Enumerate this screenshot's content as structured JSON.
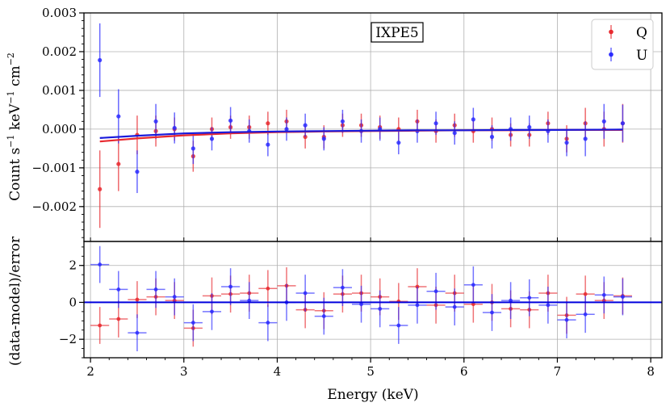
{
  "chart_data": [
    {
      "panel": "top",
      "type": "scatter",
      "ylabel_parts": [
        "Count s",
        "−1",
        " keV",
        "−1",
        " cm",
        "−2"
      ],
      "ylim": [
        -0.0029,
        0.003
      ],
      "xlim": [
        1.93,
        8.12
      ],
      "yticks": [
        {
          "v": 0.003,
          "label": "0.003"
        },
        {
          "v": 0.002,
          "label": "0.002"
        },
        {
          "v": 0.001,
          "label": "0.001"
        },
        {
          "v": 0.0,
          "label": "0.000"
        },
        {
          "v": -0.001,
          "label": "−0.001"
        },
        {
          "v": -0.002,
          "label": "−0.002"
        }
      ],
      "annotation": "IXPE5",
      "legend": {
        "placement": "top-right",
        "entries": [
          {
            "label": "Q",
            "color": "#e8292f"
          },
          {
            "label": "U",
            "color": "#2b2bff"
          }
        ]
      },
      "grid": true,
      "series": [
        {
          "name": "Q",
          "color": "#e8292f",
          "x": [
            2.1,
            2.3,
            2.5,
            2.7,
            2.9,
            3.1,
            3.3,
            3.5,
            3.7,
            3.9,
            4.1,
            4.3,
            4.5,
            4.7,
            4.9,
            5.1,
            5.3,
            5.5,
            5.7,
            5.9,
            6.1,
            6.3,
            6.5,
            6.7,
            6.9,
            7.1,
            7.3,
            7.5,
            7.7
          ],
          "y": [
            -0.00155,
            -0.0009,
            -0.00015,
            -5e-05,
            0.0,
            -0.0007,
            0.0,
            5e-05,
            5e-05,
            0.00015,
            0.0002,
            -0.0002,
            -0.0002,
            0.0001,
            0.0001,
            5e-05,
            0.0,
            0.0002,
            -5e-05,
            0.0001,
            -5e-05,
            0.0,
            -0.00015,
            -0.00015,
            0.00015,
            -0.00025,
            0.00015,
            0.0,
            0.00015
          ],
          "yerr": [
            0.001,
            0.0007,
            0.0005,
            0.0004,
            0.0003,
            0.0004,
            0.0003,
            0.0003,
            0.0003,
            0.0003,
            0.0003,
            0.0003,
            0.0003,
            0.0003,
            0.0003,
            0.0003,
            0.0003,
            0.0003,
            0.0003,
            0.0003,
            0.0003,
            0.0003,
            0.0003,
            0.0003,
            0.0003,
            0.00035,
            0.0004,
            0.00045,
            0.0005
          ]
        },
        {
          "name": "U",
          "color": "#2b2bff",
          "x": [
            2.1,
            2.3,
            2.5,
            2.7,
            2.9,
            3.1,
            3.3,
            3.5,
            3.7,
            3.9,
            4.1,
            4.3,
            4.5,
            4.7,
            4.9,
            5.1,
            5.3,
            5.5,
            5.7,
            5.9,
            6.1,
            6.3,
            6.5,
            6.7,
            6.9,
            7.1,
            7.3,
            7.5,
            7.7
          ],
          "y": [
            0.00178,
            0.00033,
            -0.0011,
            0.0002,
            3e-05,
            -0.0005,
            -0.00025,
            0.00022,
            -5e-05,
            -0.0004,
            0.0,
            0.0001,
            -0.00025,
            0.0002,
            -5e-05,
            0.0,
            -0.00035,
            -5e-05,
            0.00015,
            -0.0001,
            0.00025,
            -0.0002,
            0.0,
            5e-05,
            -5e-05,
            -0.00035,
            -0.00025,
            0.0002,
            0.00015
          ],
          "yerr": [
            0.00095,
            0.0007,
            0.00055,
            0.00045,
            0.0004,
            0.0004,
            0.0003,
            0.00035,
            0.0003,
            0.0003,
            0.0003,
            0.0003,
            0.0003,
            0.0003,
            0.0003,
            0.0003,
            0.0003,
            0.0003,
            0.0003,
            0.0003,
            0.0003,
            0.0003,
            0.0003,
            0.0003,
            0.0003,
            0.00035,
            0.00045,
            0.00045,
            0.00048
          ]
        }
      ],
      "models": [
        {
          "name": "Q",
          "color": "#e8292f",
          "x": [
            2.1,
            2.5,
            3.0,
            3.5,
            4.0,
            4.5,
            5.0,
            5.5,
            6.0,
            6.5,
            7.0,
            7.7
          ],
          "y": [
            -0.00032,
            -0.00024,
            -0.00016,
            -0.00011,
            -8e-05,
            -6e-05,
            -5e-05,
            -4e-05,
            -3e-05,
            -3e-05,
            -2e-05,
            -2e-05
          ]
        },
        {
          "name": "U",
          "color": "#1a1adb",
          "x": [
            2.1,
            2.5,
            3.0,
            3.5,
            4.0,
            4.5,
            5.0,
            5.5,
            6.0,
            6.5,
            7.0,
            7.7
          ],
          "y": [
            -0.00023,
            -0.00017,
            -0.00011,
            -8e-05,
            -6e-05,
            -5e-05,
            -4e-05,
            -3e-05,
            -3e-05,
            -2e-05,
            -2e-05,
            -1e-05
          ]
        }
      ]
    },
    {
      "panel": "bottom",
      "type": "scatter",
      "ylabel": "(data-model)/error",
      "xlabel": "Energy (keV)",
      "ylim": [
        -3.0,
        3.3
      ],
      "xlim": [
        1.93,
        8.12
      ],
      "yticks": [
        {
          "v": 2,
          "label": "2"
        },
        {
          "v": 0,
          "label": "0"
        },
        {
          "v": -2,
          "label": "−2"
        }
      ],
      "xticks": [
        {
          "v": 2,
          "label": "2"
        },
        {
          "v": 3,
          "label": "3"
        },
        {
          "v": 4,
          "label": "4"
        },
        {
          "v": 5,
          "label": "5"
        },
        {
          "v": 6,
          "label": "6"
        },
        {
          "v": 7,
          "label": "7"
        },
        {
          "v": 8,
          "label": "8"
        }
      ],
      "zero_line_color": "#0000dd",
      "grid": true,
      "series": [
        {
          "name": "Q",
          "color": "#e8292f",
          "x": [
            2.1,
            2.3,
            2.5,
            2.7,
            2.9,
            3.1,
            3.3,
            3.5,
            3.7,
            3.9,
            4.1,
            4.3,
            4.5,
            4.7,
            4.9,
            5.1,
            5.3,
            5.5,
            5.7,
            5.9,
            6.1,
            6.3,
            6.5,
            6.7,
            6.9,
            7.1,
            7.3,
            7.5,
            7.7
          ],
          "y": [
            -1.25,
            -0.9,
            0.15,
            0.3,
            0.1,
            -1.4,
            0.35,
            0.45,
            0.5,
            0.75,
            0.9,
            -0.4,
            -0.45,
            0.45,
            0.5,
            0.3,
            0.05,
            0.85,
            -0.15,
            0.5,
            -0.1,
            0.0,
            -0.35,
            -0.4,
            0.5,
            -0.7,
            0.45,
            0.1,
            0.35
          ]
        },
        {
          "name": "U",
          "color": "#2b2bff",
          "x": [
            2.1,
            2.3,
            2.5,
            2.7,
            2.9,
            3.1,
            3.3,
            3.5,
            3.7,
            3.9,
            4.1,
            4.3,
            4.5,
            4.7,
            4.9,
            5.1,
            5.3,
            5.5,
            5.7,
            5.9,
            6.1,
            6.3,
            6.5,
            6.7,
            6.9,
            7.1,
            7.3,
            7.5,
            7.7
          ],
          "y": [
            2.05,
            0.7,
            -1.65,
            0.7,
            0.3,
            -1.1,
            -0.5,
            0.85,
            0.1,
            -1.1,
            0.0,
            0.5,
            -0.75,
            0.8,
            -0.1,
            -0.35,
            -1.25,
            -0.15,
            0.6,
            -0.25,
            0.95,
            -0.55,
            0.1,
            0.25,
            -0.15,
            -0.95,
            -0.65,
            0.4,
            0.3
          ]
        }
      ]
    }
  ]
}
